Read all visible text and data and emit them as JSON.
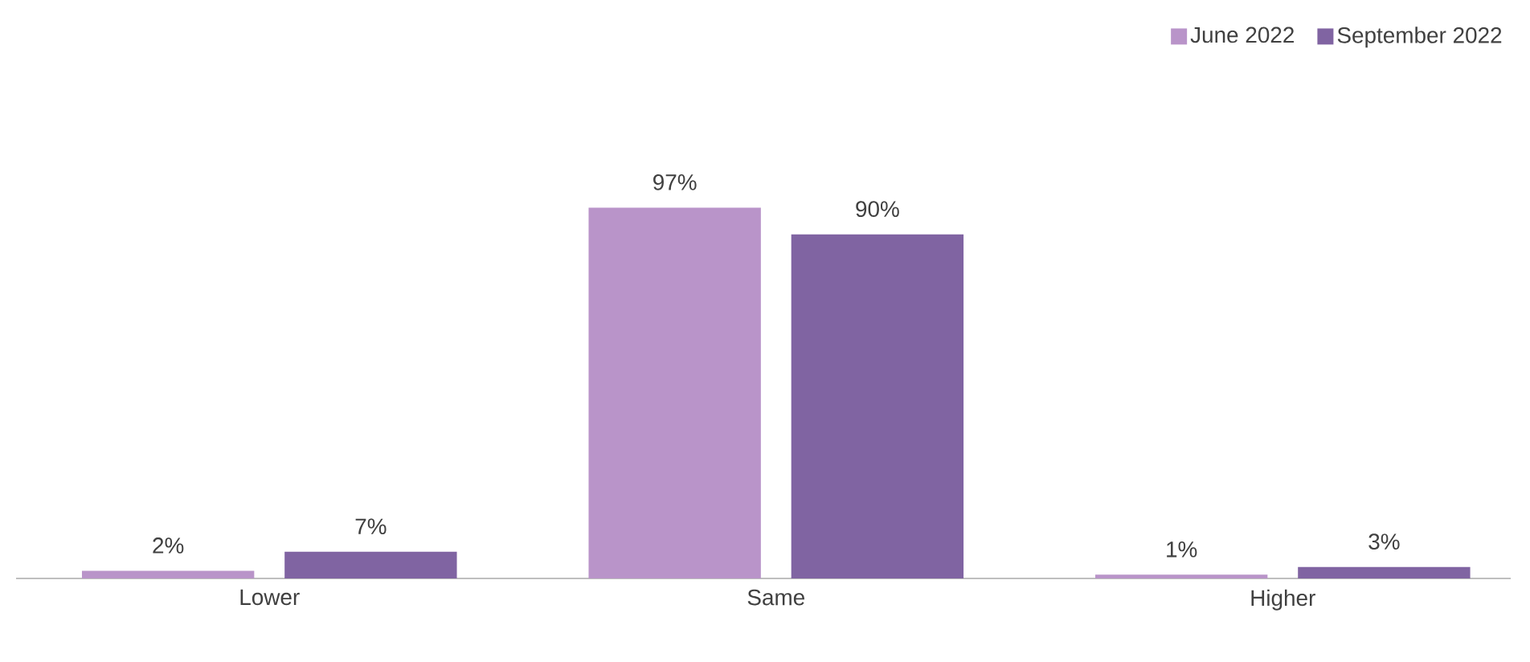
{
  "chart_data": {
    "type": "bar",
    "categories": [
      "Lower",
      "Same",
      "Higher"
    ],
    "series": [
      {
        "name": "June 2022",
        "color": "#b994c9",
        "values": [
          2,
          97,
          1
        ],
        "value_labels": [
          "2%",
          "97%",
          "1%"
        ]
      },
      {
        "name": "September 2022",
        "color": "#8064a2",
        "values": [
          7,
          90,
          3
        ],
        "value_labels": [
          "7%",
          "90%",
          "3%"
        ]
      }
    ],
    "legend": "top right"
  }
}
